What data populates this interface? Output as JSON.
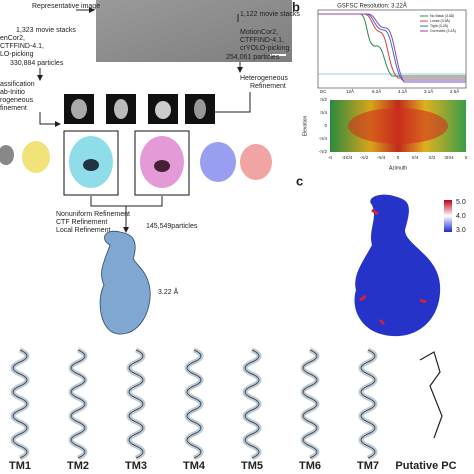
{
  "workflow": {
    "left": {
      "image_label": "Representative image",
      "stacks": "1,323 movie stacks",
      "steps": [
        "enCor2,",
        "CTFFIND-4.1,",
        "LO-picking"
      ],
      "particles": "330,884 particles",
      "classification": [
        "assification",
        "ab-Initio",
        "rogeneous",
        "finement"
      ]
    },
    "right": {
      "stacks": "1,122 movie stacks",
      "steps": [
        "MotionCor2,",
        "CTFFIND-4.1,",
        "crYOLO-picking"
      ],
      "particles": "254,061 particles",
      "refinement": [
        "Heterogeneous",
        "Refinement"
      ]
    },
    "final_steps": [
      "Nonuniform Refinement",
      "CTF Refinement",
      "Local Refinement"
    ],
    "final_particles": "145,549particles",
    "resolution": "3.22 Å"
  },
  "panel_b": {
    "label": "b",
    "title": "GSFSC Resolution: 3.22Å",
    "legend": [
      "No Mask (3.5Å)",
      "Loose (3.5Å)",
      "Tight (3.2Å)",
      "Corrected (3.2Å)"
    ],
    "x_ticks": [
      "DC",
      "12Å",
      "6.2Å",
      "4.1Å",
      "3.1Å",
      "2.5Å"
    ],
    "elevation_label": "Elevation",
    "azimuth_label": "Azimuth",
    "elevation_ticks": [
      "π/2",
      "π/4",
      "0",
      "-π/4",
      "-π/2"
    ],
    "azimuth_ticks": [
      "-π",
      "-3π/4",
      "-π/2",
      "-π/4",
      "0",
      "π/4",
      "π/2",
      "3π/4",
      "π"
    ]
  },
  "panel_c": {
    "label": "c",
    "scale": [
      "5.0",
      "4.0",
      "3.0"
    ]
  },
  "helices": [
    "TM1",
    "TM2",
    "TM3",
    "TM4",
    "TM5",
    "TM6",
    "TM7",
    "Putative PC"
  ]
}
